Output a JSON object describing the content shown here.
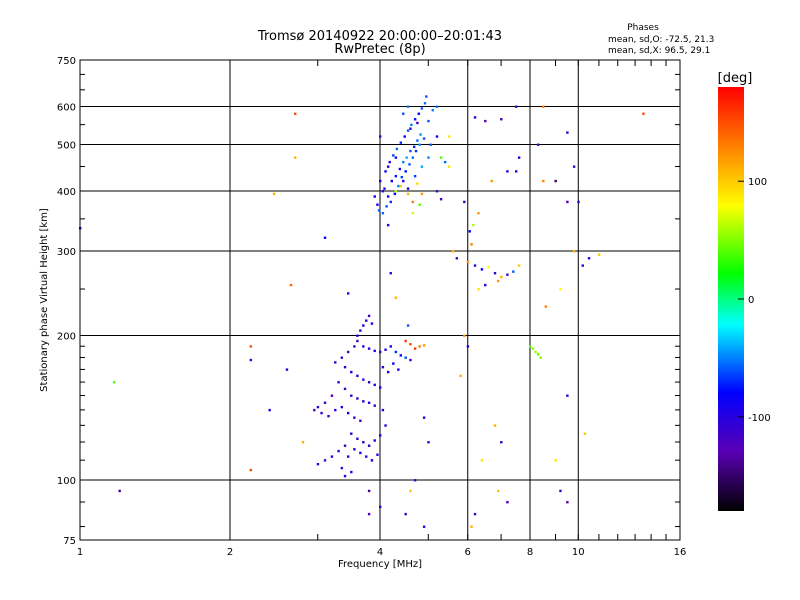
{
  "chart_data": {
    "type": "scatter",
    "title": "Tromsø 20140922 20:00:00–20:01:43",
    "subtitle": "RwPretec (8p)",
    "stats": {
      "heading": "Phases",
      "line1": "mean, sd,O: -72.5, 21.3",
      "line2": "mean, sd,X:  96.5, 29.1"
    },
    "xlabel": "Frequency [MHz]",
    "ylabel": "Stationary phase Virtual Height [km]",
    "x_scale": "log",
    "y_scale": "log",
    "xlim": [
      1,
      16
    ],
    "ylim": [
      75,
      750
    ],
    "x_ticks": [
      1,
      2,
      4,
      6,
      8,
      10,
      16
    ],
    "y_ticks": [
      75,
      100,
      200,
      300,
      400,
      500,
      600,
      750
    ],
    "grid": true,
    "colorbar": {
      "label": "[deg]",
      "range": [
        -180,
        180
      ],
      "ticks": [
        100,
        0,
        -100
      ]
    },
    "points": [
      [
        4.05,
        360,
        -55
      ],
      [
        4.12,
        372,
        -60
      ],
      [
        4.2,
        380,
        -70
      ],
      [
        4.28,
        395,
        -80
      ],
      [
        4.35,
        410,
        -50
      ],
      [
        4.42,
        428,
        -65
      ],
      [
        4.5,
        440,
        -75
      ],
      [
        4.58,
        455,
        -60
      ],
      [
        4.65,
        470,
        -55
      ],
      [
        4.72,
        485,
        -70
      ],
      [
        4.8,
        500,
        -45
      ],
      [
        4.9,
        515,
        -60
      ],
      [
        4.1,
        440,
        -90
      ],
      [
        4.18,
        460,
        -100
      ],
      [
        4.25,
        475,
        -65
      ],
      [
        4.32,
        490,
        -55
      ],
      [
        4.4,
        505,
        -70
      ],
      [
        4.48,
        520,
        -80
      ],
      [
        4.55,
        535,
        -60
      ],
      [
        4.62,
        550,
        -50
      ],
      [
        4.7,
        565,
        -75
      ],
      [
        4.78,
        580,
        -85
      ],
      [
        4.85,
        595,
        -60
      ],
      [
        4.92,
        610,
        -55
      ],
      [
        4.0,
        420,
        -90
      ],
      [
        4.08,
        405,
        -100
      ],
      [
        4.15,
        390,
        -95
      ],
      [
        4.22,
        420,
        -85
      ],
      [
        4.3,
        430,
        -75
      ],
      [
        4.38,
        445,
        -95
      ],
      [
        4.45,
        460,
        -50
      ],
      [
        4.52,
        470,
        -40
      ],
      [
        4.6,
        485,
        -60
      ],
      [
        4.68,
        495,
        -70
      ],
      [
        4.75,
        510,
        -55
      ],
      [
        4.82,
        525,
        -45
      ],
      [
        3.95,
        375,
        -85
      ],
      [
        3.9,
        390,
        -80
      ],
      [
        3.98,
        365,
        -60
      ],
      [
        4.05,
        400,
        -110
      ],
      [
        4.15,
        450,
        -95
      ],
      [
        4.3,
        470,
        -100
      ],
      [
        4.45,
        420,
        -100
      ],
      [
        4.55,
        405,
        -95
      ],
      [
        4.7,
        430,
        -65
      ],
      [
        4.85,
        450,
        -40
      ],
      [
        5.0,
        470,
        -50
      ],
      [
        5.05,
        500,
        -60
      ],
      [
        4.6,
        540,
        -105
      ],
      [
        4.75,
        555,
        -110
      ],
      [
        5.0,
        560,
        -60
      ],
      [
        5.1,
        590,
        -50
      ],
      [
        5.2,
        600,
        -55
      ],
      [
        4.95,
        630,
        -60
      ],
      [
        4.4,
        410,
        100
      ],
      [
        4.55,
        395,
        110
      ],
      [
        4.65,
        380,
        130
      ],
      [
        4.75,
        415,
        95
      ],
      [
        4.85,
        395,
        120
      ],
      [
        4.3,
        400,
        60
      ],
      [
        5.2,
        400,
        -115
      ],
      [
        5.3,
        385,
        -120
      ],
      [
        4.45,
        580,
        -60
      ],
      [
        4.55,
        600,
        -50
      ],
      [
        5.4,
        460,
        -55
      ],
      [
        5.5,
        450,
        90
      ],
      [
        3.6,
        200,
        -100
      ],
      [
        3.65,
        205,
        -110
      ],
      [
        3.7,
        210,
        -90
      ],
      [
        3.75,
        215,
        -105
      ],
      [
        3.8,
        220,
        -115
      ],
      [
        3.85,
        212,
        -95
      ],
      [
        3.55,
        190,
        -110
      ],
      [
        3.6,
        195,
        -120
      ],
      [
        3.7,
        190,
        -105
      ],
      [
        3.8,
        188,
        -100
      ],
      [
        3.9,
        186,
        -95
      ],
      [
        4.0,
        185,
        -110
      ],
      [
        4.1,
        187,
        -100
      ],
      [
        4.2,
        190,
        -85
      ],
      [
        4.3,
        185,
        -70
      ],
      [
        4.4,
        182,
        -80
      ],
      [
        4.5,
        180,
        -60
      ],
      [
        4.6,
        178,
        -110
      ],
      [
        3.45,
        185,
        -115
      ],
      [
        3.35,
        180,
        -105
      ],
      [
        3.25,
        176,
        -110
      ],
      [
        3.4,
        172,
        -100
      ],
      [
        3.5,
        168,
        -90
      ],
      [
        3.6,
        165,
        -105
      ],
      [
        3.7,
        162,
        -110
      ],
      [
        3.8,
        160,
        -100
      ],
      [
        3.9,
        158,
        -95
      ],
      [
        4.0,
        156,
        -85
      ],
      [
        3.3,
        160,
        -110
      ],
      [
        3.4,
        155,
        -115
      ],
      [
        3.5,
        150,
        -105
      ],
      [
        3.6,
        148,
        -110
      ],
      [
        3.7,
        146,
        -100
      ],
      [
        3.8,
        145,
        -95
      ],
      [
        3.9,
        143,
        -110
      ],
      [
        3.2,
        150,
        -120
      ],
      [
        3.1,
        145,
        -115
      ],
      [
        3.0,
        142,
        -110
      ],
      [
        2.95,
        140,
        -120
      ],
      [
        3.05,
        138,
        -115
      ],
      [
        3.15,
        136,
        -110
      ],
      [
        3.25,
        140,
        -105
      ],
      [
        3.35,
        142,
        -100
      ],
      [
        3.45,
        138,
        -95
      ],
      [
        3.55,
        135,
        -115
      ],
      [
        3.65,
        133,
        -110
      ],
      [
        4.05,
        140,
        -95
      ],
      [
        4.1,
        130,
        -100
      ],
      [
        3.5,
        125,
        -100
      ],
      [
        3.6,
        122,
        -110
      ],
      [
        3.7,
        120,
        -105
      ],
      [
        3.8,
        118,
        -95
      ],
      [
        3.9,
        121,
        -90
      ],
      [
        4.0,
        124,
        -100
      ],
      [
        3.4,
        118,
        -110
      ],
      [
        3.3,
        115,
        -105
      ],
      [
        3.2,
        112,
        -100
      ],
      [
        3.1,
        110,
        -115
      ],
      [
        3.0,
        108,
        -110
      ],
      [
        3.45,
        112,
        -95
      ],
      [
        3.55,
        116,
        -100
      ],
      [
        3.65,
        114,
        -90
      ],
      [
        3.75,
        112,
        -105
      ],
      [
        3.85,
        110,
        -95
      ],
      [
        3.95,
        113,
        -100
      ],
      [
        3.35,
        106,
        -110
      ],
      [
        3.4,
        102,
        -100
      ],
      [
        3.5,
        104,
        -105
      ],
      [
        4.05,
        172,
        -100
      ],
      [
        4.15,
        168,
        -95
      ],
      [
        4.25,
        175,
        -80
      ],
      [
        4.35,
        170,
        -90
      ],
      [
        4.5,
        195,
        160
      ],
      [
        4.6,
        192,
        150
      ],
      [
        4.7,
        188,
        155
      ],
      [
        4.8,
        190,
        130
      ],
      [
        4.9,
        191,
        120
      ],
      [
        4.55,
        210,
        -60
      ],
      [
        8.1,
        188,
        50
      ],
      [
        8.2,
        185,
        55
      ],
      [
        8.3,
        183,
        45
      ],
      [
        8.4,
        180,
        50
      ],
      [
        8.0,
        190,
        40
      ],
      [
        5.6,
        300,
        110
      ],
      [
        5.7,
        290,
        -120
      ],
      [
        6.0,
        285,
        120
      ],
      [
        6.2,
        280,
        -110
      ],
      [
        6.4,
        275,
        -90
      ],
      [
        6.6,
        278,
        80
      ],
      [
        6.8,
        270,
        -110
      ],
      [
        7.0,
        265,
        110
      ],
      [
        7.2,
        268,
        -120
      ],
      [
        6.3,
        250,
        90
      ],
      [
        6.5,
        255,
        -100
      ],
      [
        6.9,
        260,
        120
      ],
      [
        7.4,
        272,
        -60
      ],
      [
        7.6,
        280,
        100
      ],
      [
        6.1,
        310,
        130
      ],
      [
        6.05,
        330,
        -80
      ],
      [
        6.15,
        340,
        60
      ],
      [
        6.3,
        360,
        120
      ],
      [
        5.9,
        380,
        -110
      ],
      [
        6.7,
        420,
        120
      ],
      [
        7.5,
        440,
        -110
      ],
      [
        8.5,
        420,
        130
      ],
      [
        9.0,
        420,
        -150
      ],
      [
        9.5,
        380,
        -120
      ],
      [
        8.3,
        500,
        -120
      ],
      [
        9.8,
        450,
        -110
      ],
      [
        10.0,
        380,
        -100
      ],
      [
        8.6,
        230,
        130
      ],
      [
        9.2,
        250,
        80
      ],
      [
        9.8,
        300,
        110
      ],
      [
        10.2,
        280,
        -110
      ],
      [
        9.5,
        150,
        -110
      ],
      [
        9.0,
        110,
        90
      ],
      [
        9.2,
        95,
        -110
      ],
      [
        9.5,
        90,
        -130
      ],
      [
        10.3,
        125,
        100
      ],
      [
        7.2,
        440,
        -100
      ],
      [
        7.6,
        470,
        -90
      ],
      [
        6.5,
        560,
        -130
      ],
      [
        7.0,
        565,
        -120
      ],
      [
        7.5,
        600,
        -110
      ],
      [
        6.2,
        570,
        -100
      ],
      [
        8.5,
        600,
        130
      ],
      [
        9.5,
        530,
        -110
      ],
      [
        6.8,
        130,
        110
      ],
      [
        7.0,
        120,
        -110
      ],
      [
        6.4,
        110,
        90
      ],
      [
        6.9,
        95,
        100
      ],
      [
        7.2,
        90,
        -120
      ],
      [
        6.2,
        85,
        -110
      ],
      [
        6.1,
        80,
        110
      ],
      [
        5.2,
        520,
        -80
      ],
      [
        5.3,
        470,
        40
      ],
      [
        5.5,
        520,
        90
      ],
      [
        2.2,
        190,
        150
      ],
      [
        2.2,
        178,
        -110
      ],
      [
        2.6,
        170,
        -100
      ],
      [
        2.4,
        140,
        -100
      ],
      [
        2.8,
        120,
        110
      ],
      [
        2.2,
        105,
        150
      ],
      [
        2.65,
        255,
        140
      ],
      [
        2.7,
        580,
        150
      ],
      [
        2.45,
        395,
        110
      ],
      [
        2.7,
        470,
        110
      ],
      [
        1.17,
        160,
        40
      ],
      [
        1.2,
        95,
        -140
      ],
      [
        1.0,
        335,
        -100
      ],
      [
        3.1,
        320,
        -80
      ],
      [
        3.45,
        245,
        -105
      ],
      [
        3.8,
        95,
        -140
      ],
      [
        3.8,
        85,
        -120
      ],
      [
        4.0,
        88,
        -100
      ],
      [
        4.5,
        85,
        -110
      ],
      [
        4.9,
        80,
        -105
      ],
      [
        4.6,
        95,
        100
      ],
      [
        4.7,
        100,
        -120
      ],
      [
        5.0,
        120,
        -110
      ],
      [
        4.9,
        135,
        -100
      ],
      [
        4.3,
        240,
        110
      ],
      [
        4.2,
        270,
        -110
      ],
      [
        4.15,
        340,
        -100
      ],
      [
        5.9,
        200,
        120
      ],
      [
        6.0,
        190,
        -100
      ],
      [
        5.8,
        165,
        110
      ],
      [
        13.5,
        580,
        150
      ],
      [
        10.5,
        290,
        -100
      ],
      [
        11.0,
        295,
        100
      ],
      [
        4.8,
        375,
        40
      ],
      [
        4.65,
        360,
        70
      ],
      [
        4.0,
        520,
        -110
      ]
    ]
  }
}
